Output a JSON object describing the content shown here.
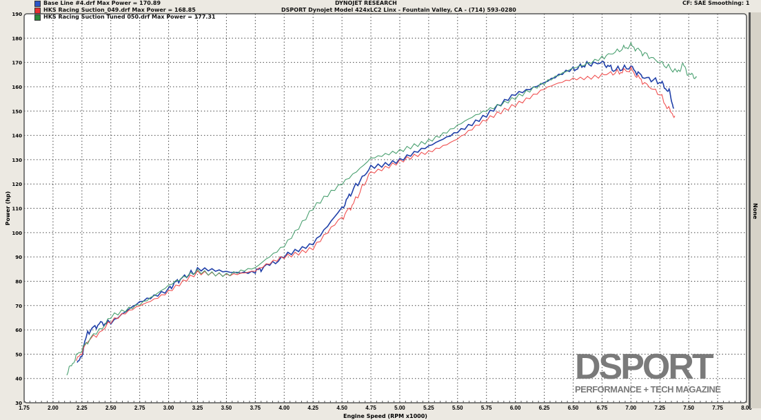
{
  "header": {
    "title": "DYNOJET RESEARCH",
    "subtitle": "DSPORT Dynojet Model 424xLC2 Linx - Fountain Valley, CA - (714) 593-0280",
    "settings": "CF: SAE  Smoothing: 1",
    "right_panel": "None"
  },
  "logo": {
    "name": "DSPORT",
    "tagline": "PERFORMANCE + TECH MAGAZINE"
  },
  "chart_data": {
    "type": "line",
    "xlabel": "Engine Speed (RPM x1000)",
    "ylabel": "Power (hp)",
    "xlim": [
      1.75,
      8.0
    ],
    "ylim": [
      30,
      190
    ],
    "xticks": [
      "1.75",
      "2.00",
      "2.25",
      "2.50",
      "2.75",
      "3.00",
      "3.25",
      "3.50",
      "3.75",
      "4.00",
      "4.25",
      "4.50",
      "4.75",
      "5.00",
      "5.25",
      "5.50",
      "5.75",
      "6.00",
      "6.25",
      "6.50",
      "6.75",
      "7.00",
      "7.25",
      "7.50",
      "7.75",
      "8.00"
    ],
    "yticks": [
      "30",
      "40",
      "50",
      "60",
      "70",
      "80",
      "90",
      "100",
      "110",
      "120",
      "130",
      "140",
      "150",
      "160",
      "170",
      "180",
      "190"
    ],
    "grid": true,
    "legend_placement": "top-left",
    "series": [
      {
        "name": "Base Line #4.drf Max Power = 170.89",
        "color": "#1f3fa8",
        "x": [
          2.21,
          2.25,
          2.3,
          2.4,
          2.5,
          2.75,
          3.0,
          3.1,
          3.25,
          3.5,
          3.75,
          3.8,
          4.0,
          4.25,
          4.5,
          4.6,
          4.75,
          5.0,
          5.25,
          5.5,
          5.75,
          6.0,
          6.25,
          6.5,
          6.6,
          6.75,
          6.85,
          7.0,
          7.1,
          7.25,
          7.33,
          7.37
        ],
        "y": [
          45.5,
          50,
          59,
          62.5,
          63,
          71,
          77,
          81,
          84.5,
          84,
          84,
          85,
          90,
          96,
          110,
          118,
          127,
          130,
          135,
          142,
          148,
          157,
          162,
          167,
          169,
          170,
          167,
          168,
          164,
          162,
          158,
          151
        ]
      },
      {
        "name": "HKS Racing Suction_049.drf Max Power = 168.85",
        "color": "#f05050",
        "x": [
          2.2,
          2.3,
          2.5,
          2.75,
          3.0,
          3.25,
          3.5,
          3.75,
          4.0,
          4.25,
          4.5,
          4.6,
          4.75,
          5.0,
          5.25,
          5.5,
          5.75,
          6.0,
          6.25,
          6.5,
          6.75,
          6.9,
          7.0,
          7.1,
          7.25,
          7.32,
          7.38
        ],
        "y": [
          47,
          55,
          63,
          70,
          76,
          83,
          83,
          84,
          90,
          94,
          106,
          112,
          125,
          129,
          133,
          139,
          146,
          153,
          159,
          163,
          165,
          166,
          167,
          162,
          157,
          151,
          148
        ]
      },
      {
        "name": "HKS Racing Suction Tuned  050.drf Max Power = 177.31",
        "color": "#4aa070",
        "x": [
          2.12,
          2.2,
          2.3,
          2.5,
          2.75,
          3.0,
          3.25,
          3.5,
          3.75,
          4.0,
          4.25,
          4.5,
          4.75,
          5.0,
          5.25,
          5.5,
          5.75,
          6.0,
          6.25,
          6.5,
          6.75,
          6.9,
          7.0,
          7.1,
          7.25,
          7.4,
          7.45,
          7.5,
          7.57
        ],
        "y": [
          42,
          49,
          55,
          65,
          71,
          78,
          84,
          83,
          85,
          95,
          110,
          120,
          131,
          133,
          138,
          144,
          150,
          156,
          161,
          168,
          172,
          175,
          177,
          174,
          170,
          166,
          169,
          165,
          164
        ]
      }
    ]
  }
}
